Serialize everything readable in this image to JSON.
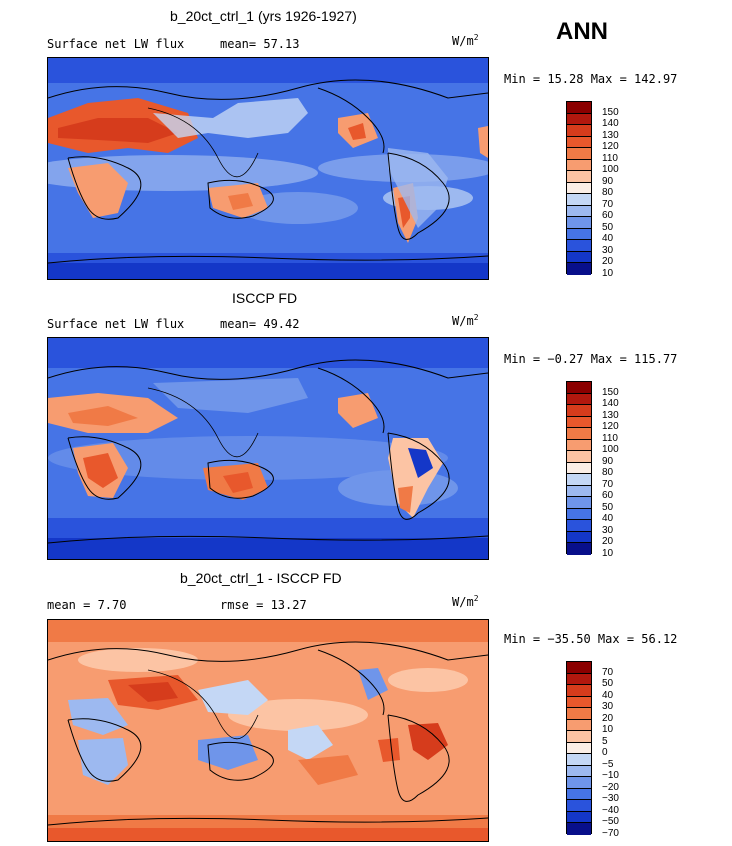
{
  "season_label": "ANN",
  "panels": [
    {
      "title": "b_20ct_ctrl_1 (yrs 1926-1927)",
      "variable": "Surface net LW flux",
      "stat1": "mean=   57.13",
      "stat2": "",
      "units": "W/m",
      "units_exp": "2",
      "minmax": "Min =  15.28 Max = 142.97",
      "colorbar": {
        "colors": [
          "#8b0000",
          "#b2180e",
          "#d63c1c",
          "#e8582c",
          "#f07a46",
          "#f79c70",
          "#fcc4a4",
          "#fbeee6",
          "#c4d7f5",
          "#9db9f0",
          "#6f95ea",
          "#4674e6",
          "#2a53dc",
          "#1437c8",
          "#080f8a"
        ],
        "labels": [
          "150",
          "140",
          "130",
          "120",
          "110",
          "100",
          "90",
          "80",
          "70",
          "60",
          "50",
          "40",
          "30",
          "20",
          "10"
        ]
      }
    },
    {
      "title": "ISCCP FD",
      "variable": "Surface net LW flux",
      "stat1": "mean=   49.42",
      "stat2": "",
      "units": "W/m",
      "units_exp": "2",
      "minmax": "Min =  −0.27 Max = 115.77",
      "colorbar": {
        "colors": [
          "#8b0000",
          "#b2180e",
          "#d63c1c",
          "#e8582c",
          "#f07a46",
          "#f79c70",
          "#fcc4a4",
          "#fbeee6",
          "#c4d7f5",
          "#9db9f0",
          "#6f95ea",
          "#4674e6",
          "#2a53dc",
          "#1437c8",
          "#080f8a"
        ],
        "labels": [
          "150",
          "140",
          "130",
          "120",
          "110",
          "100",
          "90",
          "80",
          "70",
          "60",
          "50",
          "40",
          "30",
          "20",
          "10"
        ]
      }
    },
    {
      "title": "b_20ct_ctrl_1 - ISCCP FD",
      "variable": "",
      "stat1": "mean =   7.70",
      "stat2": "rmse =   13.27",
      "units": "W/m",
      "units_exp": "2",
      "minmax": "Min = −35.50 Max =  56.12",
      "colorbar": {
        "colors": [
          "#8b0000",
          "#b2180e",
          "#d63c1c",
          "#e8582c",
          "#f07a46",
          "#f79c70",
          "#fcc4a4",
          "#fbeee6",
          "#c4d7f5",
          "#9db9f0",
          "#6f95ea",
          "#4674e6",
          "#2a53dc",
          "#1437c8",
          "#080f8a"
        ],
        "labels": [
          "70",
          "50",
          "40",
          "30",
          "20",
          "10",
          "5",
          "0",
          "−5",
          "−10",
          "−20",
          "−30",
          "−40",
          "−50",
          "−70"
        ]
      }
    }
  ]
}
